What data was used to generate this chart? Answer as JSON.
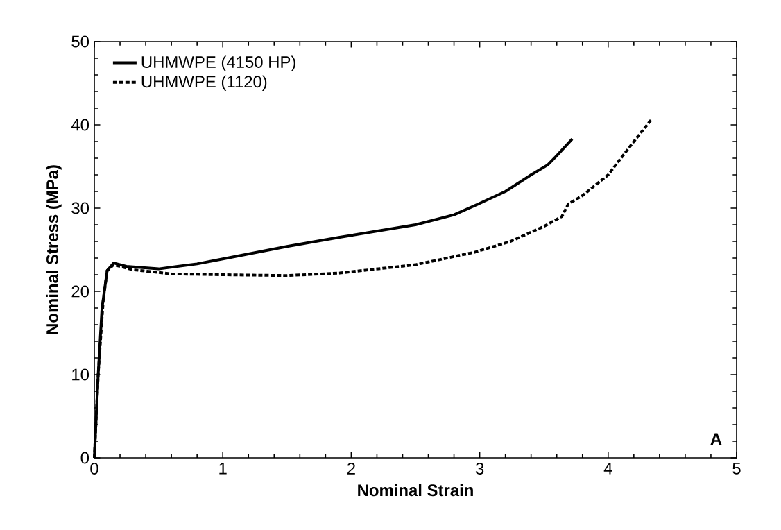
{
  "chart_data": {
    "type": "line",
    "xlabel": "Nominal Strain",
    "ylabel": "Nominal Stress (MPa)",
    "xlim": [
      0,
      5
    ],
    "ylim": [
      0,
      50
    ],
    "xticks": [
      0,
      1,
      2,
      3,
      4,
      5
    ],
    "yticks": [
      0,
      10,
      20,
      30,
      40,
      50
    ],
    "grid": false,
    "legend": "top left",
    "annotations": [
      "A"
    ],
    "series": [
      {
        "name": "UHMWPE (4150 HP)",
        "color": "#000000",
        "line_style": "solid",
        "x": [
          0,
          0.03,
          0.06,
          0.1,
          0.15,
          0.25,
          0.5,
          0.8,
          1.0,
          1.5,
          1.91,
          2.5,
          2.8,
          2.99,
          3.2,
          3.4,
          3.53,
          3.6,
          3.72
        ],
        "values": [
          0,
          10,
          18,
          22.5,
          23.4,
          23.0,
          22.7,
          23.3,
          23.9,
          25.4,
          26.5,
          28.0,
          29.2,
          30.5,
          32,
          34,
          35.2,
          36.3,
          38.3
        ]
      },
      {
        "name": "UHMWPE (1120)",
        "color": "#000000",
        "line_style": "dashed",
        "x": [
          0,
          0.03,
          0.07,
          0.1,
          0.15,
          0.3,
          0.6,
          1.0,
          1.5,
          1.91,
          2.5,
          2.96,
          3.24,
          3.5,
          3.64,
          3.69,
          3.8,
          4.0,
          4.2,
          4.34
        ],
        "values": [
          0,
          10,
          19,
          22.5,
          23.2,
          22.6,
          22.1,
          22.0,
          21.9,
          22.2,
          23.2,
          24.7,
          26,
          27.8,
          29,
          30.5,
          31.5,
          34,
          38,
          40.7
        ]
      }
    ]
  }
}
